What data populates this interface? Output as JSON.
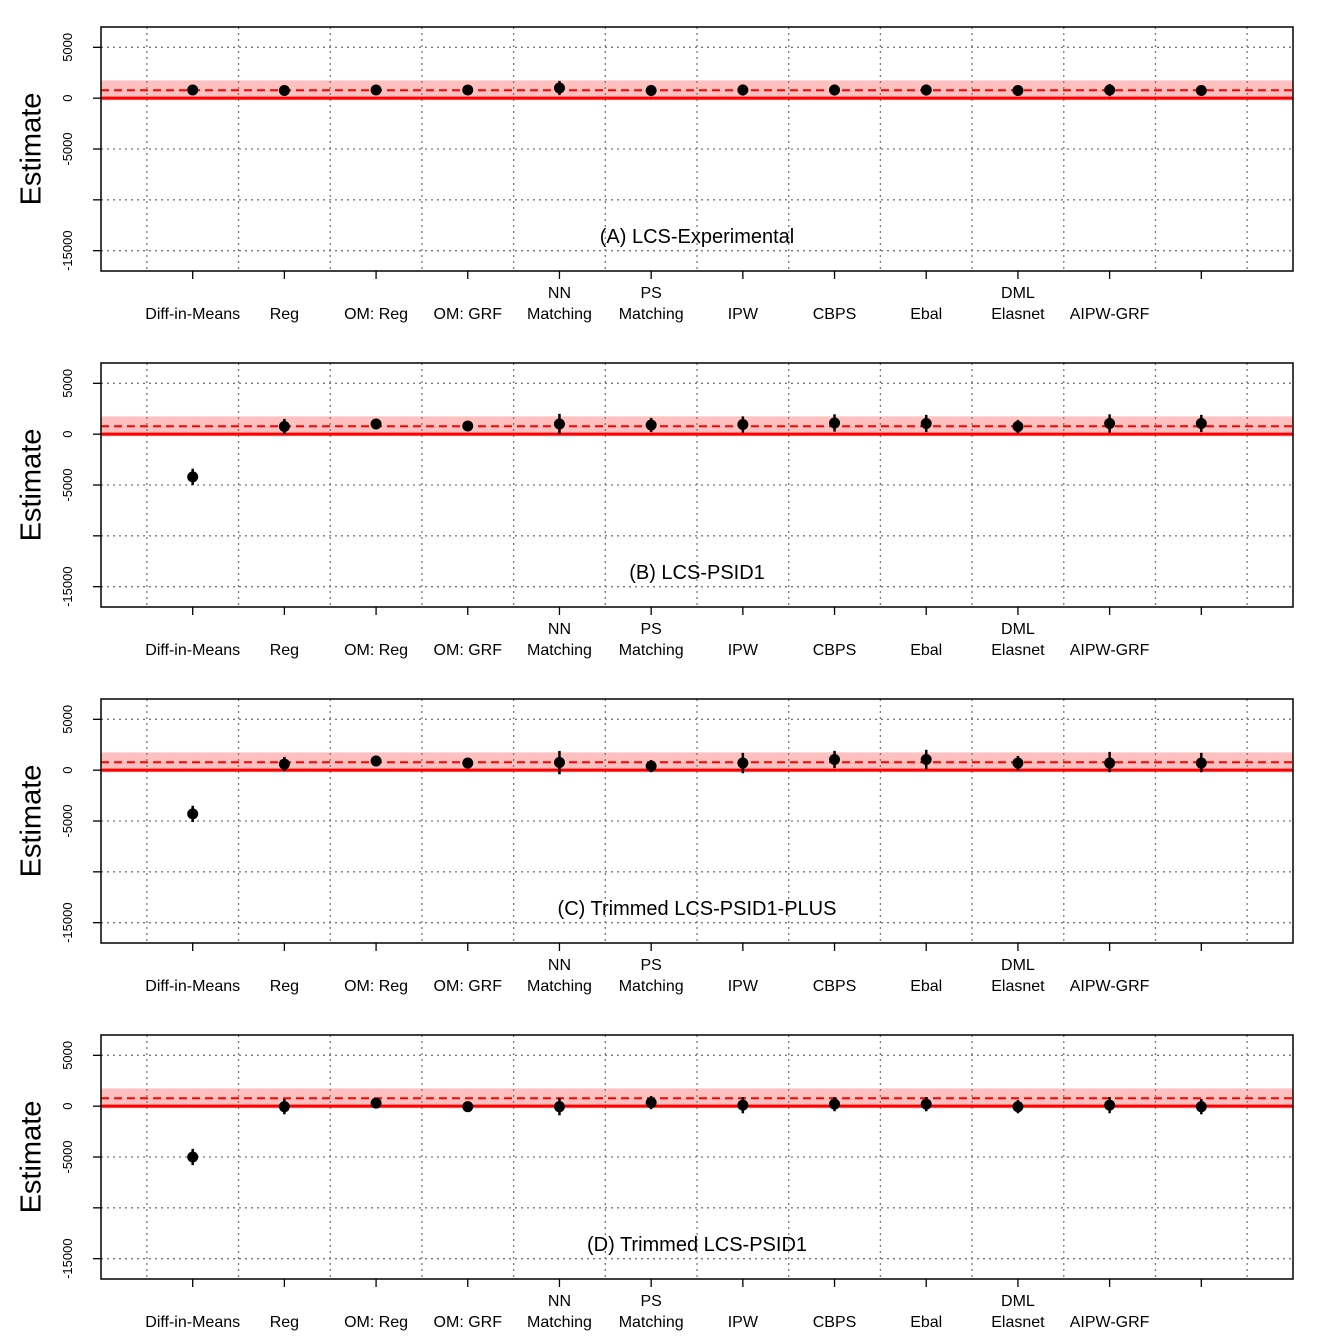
{
  "chart_data": {
    "type": "scatter",
    "benchmark": {
      "estimate": 775,
      "ci": [
        -200,
        1750
      ],
      "color_line": "#ff0000",
      "color_band": "#ffc0c0"
    },
    "ylabel": "Estimate",
    "ylim": [
      -17000,
      7000
    ],
    "yticks": [
      {
        "value": 5000,
        "label": "5000"
      },
      {
        "value": 0,
        "label": "0"
      },
      {
        "value": -5000,
        "label": "-5000"
      },
      {
        "value": -10000,
        "label": ""
      },
      {
        "value": -15000,
        "label": "-15000"
      }
    ],
    "x_positions": [
      1,
      2,
      3,
      4,
      5,
      6,
      7,
      8,
      9,
      10,
      11,
      12
    ],
    "xlim": [
      0,
      13
    ],
    "vertical_grid": [
      0.5,
      1.5,
      2.5,
      3.5,
      4.5,
      5.5,
      6.5,
      7.5,
      8.5,
      9.5,
      10.5,
      11.5,
      12.5
    ],
    "categories": [
      {
        "line1": "",
        "line2": "Diff-in-Means"
      },
      {
        "line1": "",
        "line2": "Reg"
      },
      {
        "line1": "",
        "line2": "OM: Reg"
      },
      {
        "line1": "",
        "line2": "OM: GRF"
      },
      {
        "line1": "NN",
        "line2": "Matching"
      },
      {
        "line1": "PS",
        "line2": "Matching"
      },
      {
        "line1": "",
        "line2": "IPW"
      },
      {
        "line1": "",
        "line2": "CBPS"
      },
      {
        "line1": "",
        "line2": "Ebal"
      },
      {
        "line1": "DML",
        "line2": "Elasnet"
      },
      {
        "line1": "",
        "line2": "AIPW-GRF"
      },
      {
        "line1": "",
        "line2": ""
      }
    ],
    "panels": [
      {
        "title": "(A) LCS-Experimental",
        "estimates": [
          800,
          750,
          800,
          800,
          1000,
          750,
          800,
          800,
          800,
          750,
          800,
          750
        ],
        "ci_low": [
          300,
          250,
          400,
          400,
          300,
          200,
          250,
          250,
          250,
          250,
          200,
          250
        ],
        "ci_high": [
          1300,
          1250,
          1200,
          1200,
          1700,
          1300,
          1350,
          1350,
          1350,
          1250,
          1400,
          1250
        ]
      },
      {
        "title": "(B) LCS-PSID1",
        "estimates": [
          -4200,
          750,
          1000,
          800,
          1000,
          900,
          950,
          1100,
          1050,
          750,
          1050,
          1050
        ],
        "ci_low": [
          -5000,
          0,
          500,
          300,
          0,
          200,
          150,
          250,
          200,
          100,
          150,
          200
        ],
        "ci_high": [
          -3400,
          1500,
          1500,
          1300,
          2000,
          1600,
          1750,
          1950,
          1900,
          1400,
          1950,
          1900
        ]
      },
      {
        "title": "(C) Trimmed LCS-PSID1-PLUS",
        "estimates": [
          -4300,
          600,
          900,
          700,
          750,
          400,
          700,
          1050,
          1050,
          700,
          700,
          700
        ],
        "ci_low": [
          -5100,
          -100,
          400,
          200,
          -400,
          -200,
          -300,
          200,
          100,
          0,
          -200,
          -200
        ],
        "ci_high": [
          -3500,
          1300,
          1400,
          1200,
          1900,
          1000,
          1700,
          1900,
          2000,
          1400,
          1800,
          1700
        ]
      },
      {
        "title": "(D) Trimmed LCS-PSID1",
        "estimates": [
          -5000,
          -50,
          300,
          -50,
          -50,
          350,
          100,
          200,
          200,
          -50,
          100,
          -50
        ],
        "ci_low": [
          -5800,
          -800,
          -100,
          -450,
          -900,
          -300,
          -700,
          -500,
          -500,
          -700,
          -700,
          -800
        ],
        "ci_high": [
          -4200,
          700,
          700,
          350,
          800,
          1000,
          900,
          900,
          900,
          600,
          900,
          700
        ]
      }
    ]
  }
}
